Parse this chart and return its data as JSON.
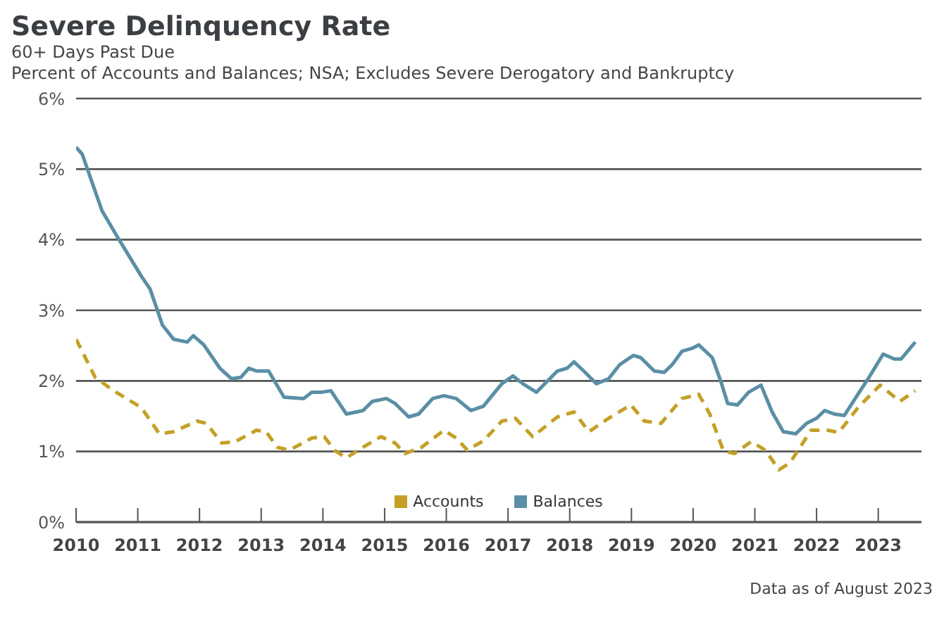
{
  "chart_data": {
    "type": "line",
    "title": "Severe Delinquency Rate",
    "subtitle": "60+ Days Past Due",
    "ylabel": "Percent of Accounts and Balances; NSA; Excludes Severe Derogatory and Bankruptcy",
    "xlim": [
      2010,
      2023.7
    ],
    "xticks": [
      2010,
      2011,
      2012,
      2013,
      2014,
      2015,
      2016,
      2017,
      2018,
      2019,
      2020,
      2021,
      2022,
      2023
    ],
    "ylim": [
      0,
      6
    ],
    "yticks": [
      {
        "value": 0,
        "label": "0%"
      },
      {
        "value": 1,
        "label": "1%"
      },
      {
        "value": 2,
        "label": "2%"
      },
      {
        "value": 3,
        "label": "3%"
      },
      {
        "value": 4,
        "label": "4%"
      },
      {
        "value": 5,
        "label": "5%"
      },
      {
        "value": 6,
        "label": "6%"
      }
    ],
    "grid": "y",
    "legend": "bottom",
    "marker": "none",
    "annotations": [
      "Data as of August 2023"
    ],
    "series": [
      {
        "name": "Accounts",
        "color": "#c4a027",
        "line_style": "dashed",
        "x": [
          2010.0,
          2010.31,
          2010.61,
          2011.06,
          2011.35,
          2011.58,
          2011.96,
          2012.11,
          2012.36,
          2012.58,
          2012.92,
          2013.08,
          2013.26,
          2013.46,
          2013.82,
          2014.02,
          2014.2,
          2014.38,
          2014.65,
          2014.94,
          2015.17,
          2015.33,
          2015.6,
          2015.96,
          2016.16,
          2016.34,
          2016.6,
          2016.9,
          2017.12,
          2017.4,
          2017.8,
          2018.07,
          2018.31,
          2018.63,
          2018.99,
          2019.21,
          2019.48,
          2019.82,
          2020.09,
          2020.27,
          2020.49,
          2020.67,
          2020.94,
          2021.17,
          2021.39,
          2021.57,
          2021.91,
          2022.18,
          2022.36,
          2022.67,
          2023.03,
          2023.35,
          2023.6
        ],
        "values": [
          2.59,
          2.05,
          1.86,
          1.62,
          1.25,
          1.28,
          1.43,
          1.4,
          1.12,
          1.14,
          1.3,
          1.28,
          1.06,
          1.02,
          1.19,
          1.21,
          1.01,
          0.91,
          1.06,
          1.21,
          1.12,
          0.97,
          1.06,
          1.3,
          1.19,
          1.02,
          1.15,
          1.43,
          1.47,
          1.21,
          1.49,
          1.56,
          1.28,
          1.47,
          1.66,
          1.43,
          1.4,
          1.75,
          1.81,
          1.53,
          1.01,
          0.97,
          1.14,
          1.02,
          0.74,
          0.84,
          1.3,
          1.3,
          1.27,
          1.62,
          1.94,
          1.71,
          1.86
        ]
      },
      {
        "name": "Balances",
        "color": "#5a8fa6",
        "line_style": "solid",
        "x": [
          2010.0,
          2010.1,
          2010.42,
          2010.67,
          2011.06,
          2011.2,
          2011.4,
          2011.58,
          2011.8,
          2011.9,
          2012.07,
          2012.33,
          2012.52,
          2012.67,
          2012.8,
          2012.92,
          2013.12,
          2013.37,
          2013.69,
          2013.82,
          2013.98,
          2014.13,
          2014.38,
          2014.65,
          2014.8,
          2015.03,
          2015.17,
          2015.39,
          2015.55,
          2015.78,
          2015.96,
          2016.16,
          2016.4,
          2016.6,
          2016.9,
          2017.08,
          2017.24,
          2017.46,
          2017.8,
          2017.96,
          2018.07,
          2018.25,
          2018.43,
          2018.63,
          2018.81,
          2019.03,
          2019.15,
          2019.37,
          2019.53,
          2019.66,
          2019.82,
          2019.98,
          2020.09,
          2020.31,
          2020.45,
          2020.56,
          2020.72,
          2020.9,
          2021.1,
          2021.28,
          2021.46,
          2021.66,
          2021.84,
          2022.0,
          2022.13,
          2022.29,
          2022.45,
          2022.67,
          2022.85,
          2023.08,
          2023.26,
          2023.37,
          2023.6
        ],
        "values": [
          5.31,
          5.21,
          4.41,
          4.04,
          3.48,
          3.3,
          2.79,
          2.59,
          2.55,
          2.64,
          2.51,
          2.18,
          2.03,
          2.05,
          2.18,
          2.14,
          2.14,
          1.77,
          1.75,
          1.84,
          1.84,
          1.86,
          1.53,
          1.58,
          1.71,
          1.75,
          1.68,
          1.49,
          1.53,
          1.75,
          1.79,
          1.75,
          1.58,
          1.64,
          1.96,
          2.07,
          1.96,
          1.84,
          2.14,
          2.18,
          2.27,
          2.12,
          1.96,
          2.03,
          2.23,
          2.36,
          2.33,
          2.14,
          2.12,
          2.23,
          2.42,
          2.46,
          2.51,
          2.33,
          1.99,
          1.68,
          1.66,
          1.84,
          1.94,
          1.56,
          1.28,
          1.25,
          1.4,
          1.47,
          1.58,
          1.53,
          1.51,
          1.81,
          2.05,
          2.38,
          2.31,
          2.31,
          2.55
        ]
      }
    ]
  }
}
